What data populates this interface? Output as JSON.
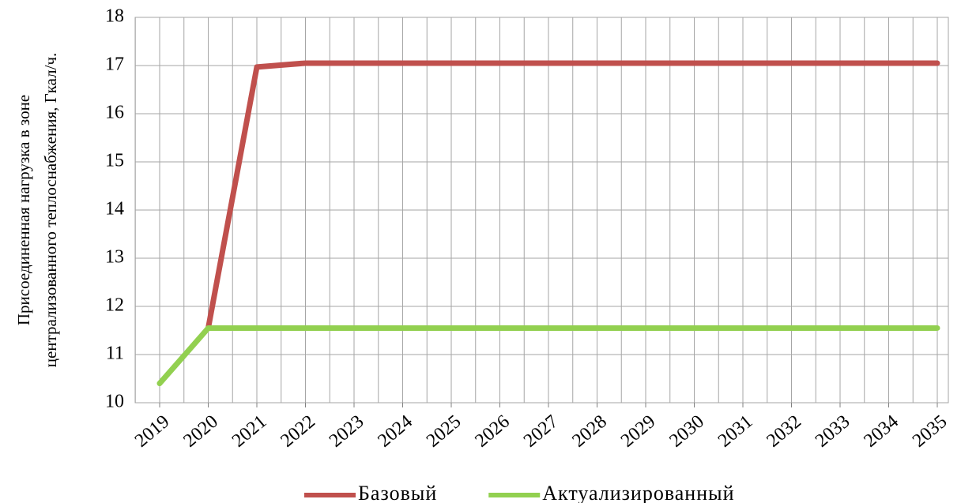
{
  "chart_data": {
    "type": "line",
    "ylabel": [
      "Присоединенная нагрузка в зоне",
      "централизованного теплоснабжения, Гкал/ч."
    ],
    "categories": [
      "2019",
      "2020",
      "2021",
      "2022",
      "2023",
      "2024",
      "2025",
      "2026",
      "2027",
      "2028",
      "2029",
      "2030",
      "2031",
      "2032",
      "2033",
      "2034",
      "2035"
    ],
    "series": [
      {
        "name": "Базовый",
        "color": "#c0504d",
        "values": [
          null,
          11.55,
          16.97,
          17.05,
          17.05,
          17.05,
          17.05,
          17.05,
          17.05,
          17.05,
          17.05,
          17.05,
          17.05,
          17.05,
          17.05,
          17.05,
          17.05
        ]
      },
      {
        "name": "Актуализированный",
        "color": "#92d050",
        "values": [
          10.4,
          11.55,
          11.55,
          11.55,
          11.55,
          11.55,
          11.55,
          11.55,
          11.55,
          11.55,
          11.55,
          11.55,
          11.55,
          11.55,
          11.55,
          11.55,
          11.55
        ]
      }
    ],
    "ylim": [
      10,
      18
    ],
    "yticks": [
      10,
      11,
      12,
      13,
      14,
      15,
      16,
      17,
      18
    ],
    "grid": true,
    "legend": "bottom"
  }
}
